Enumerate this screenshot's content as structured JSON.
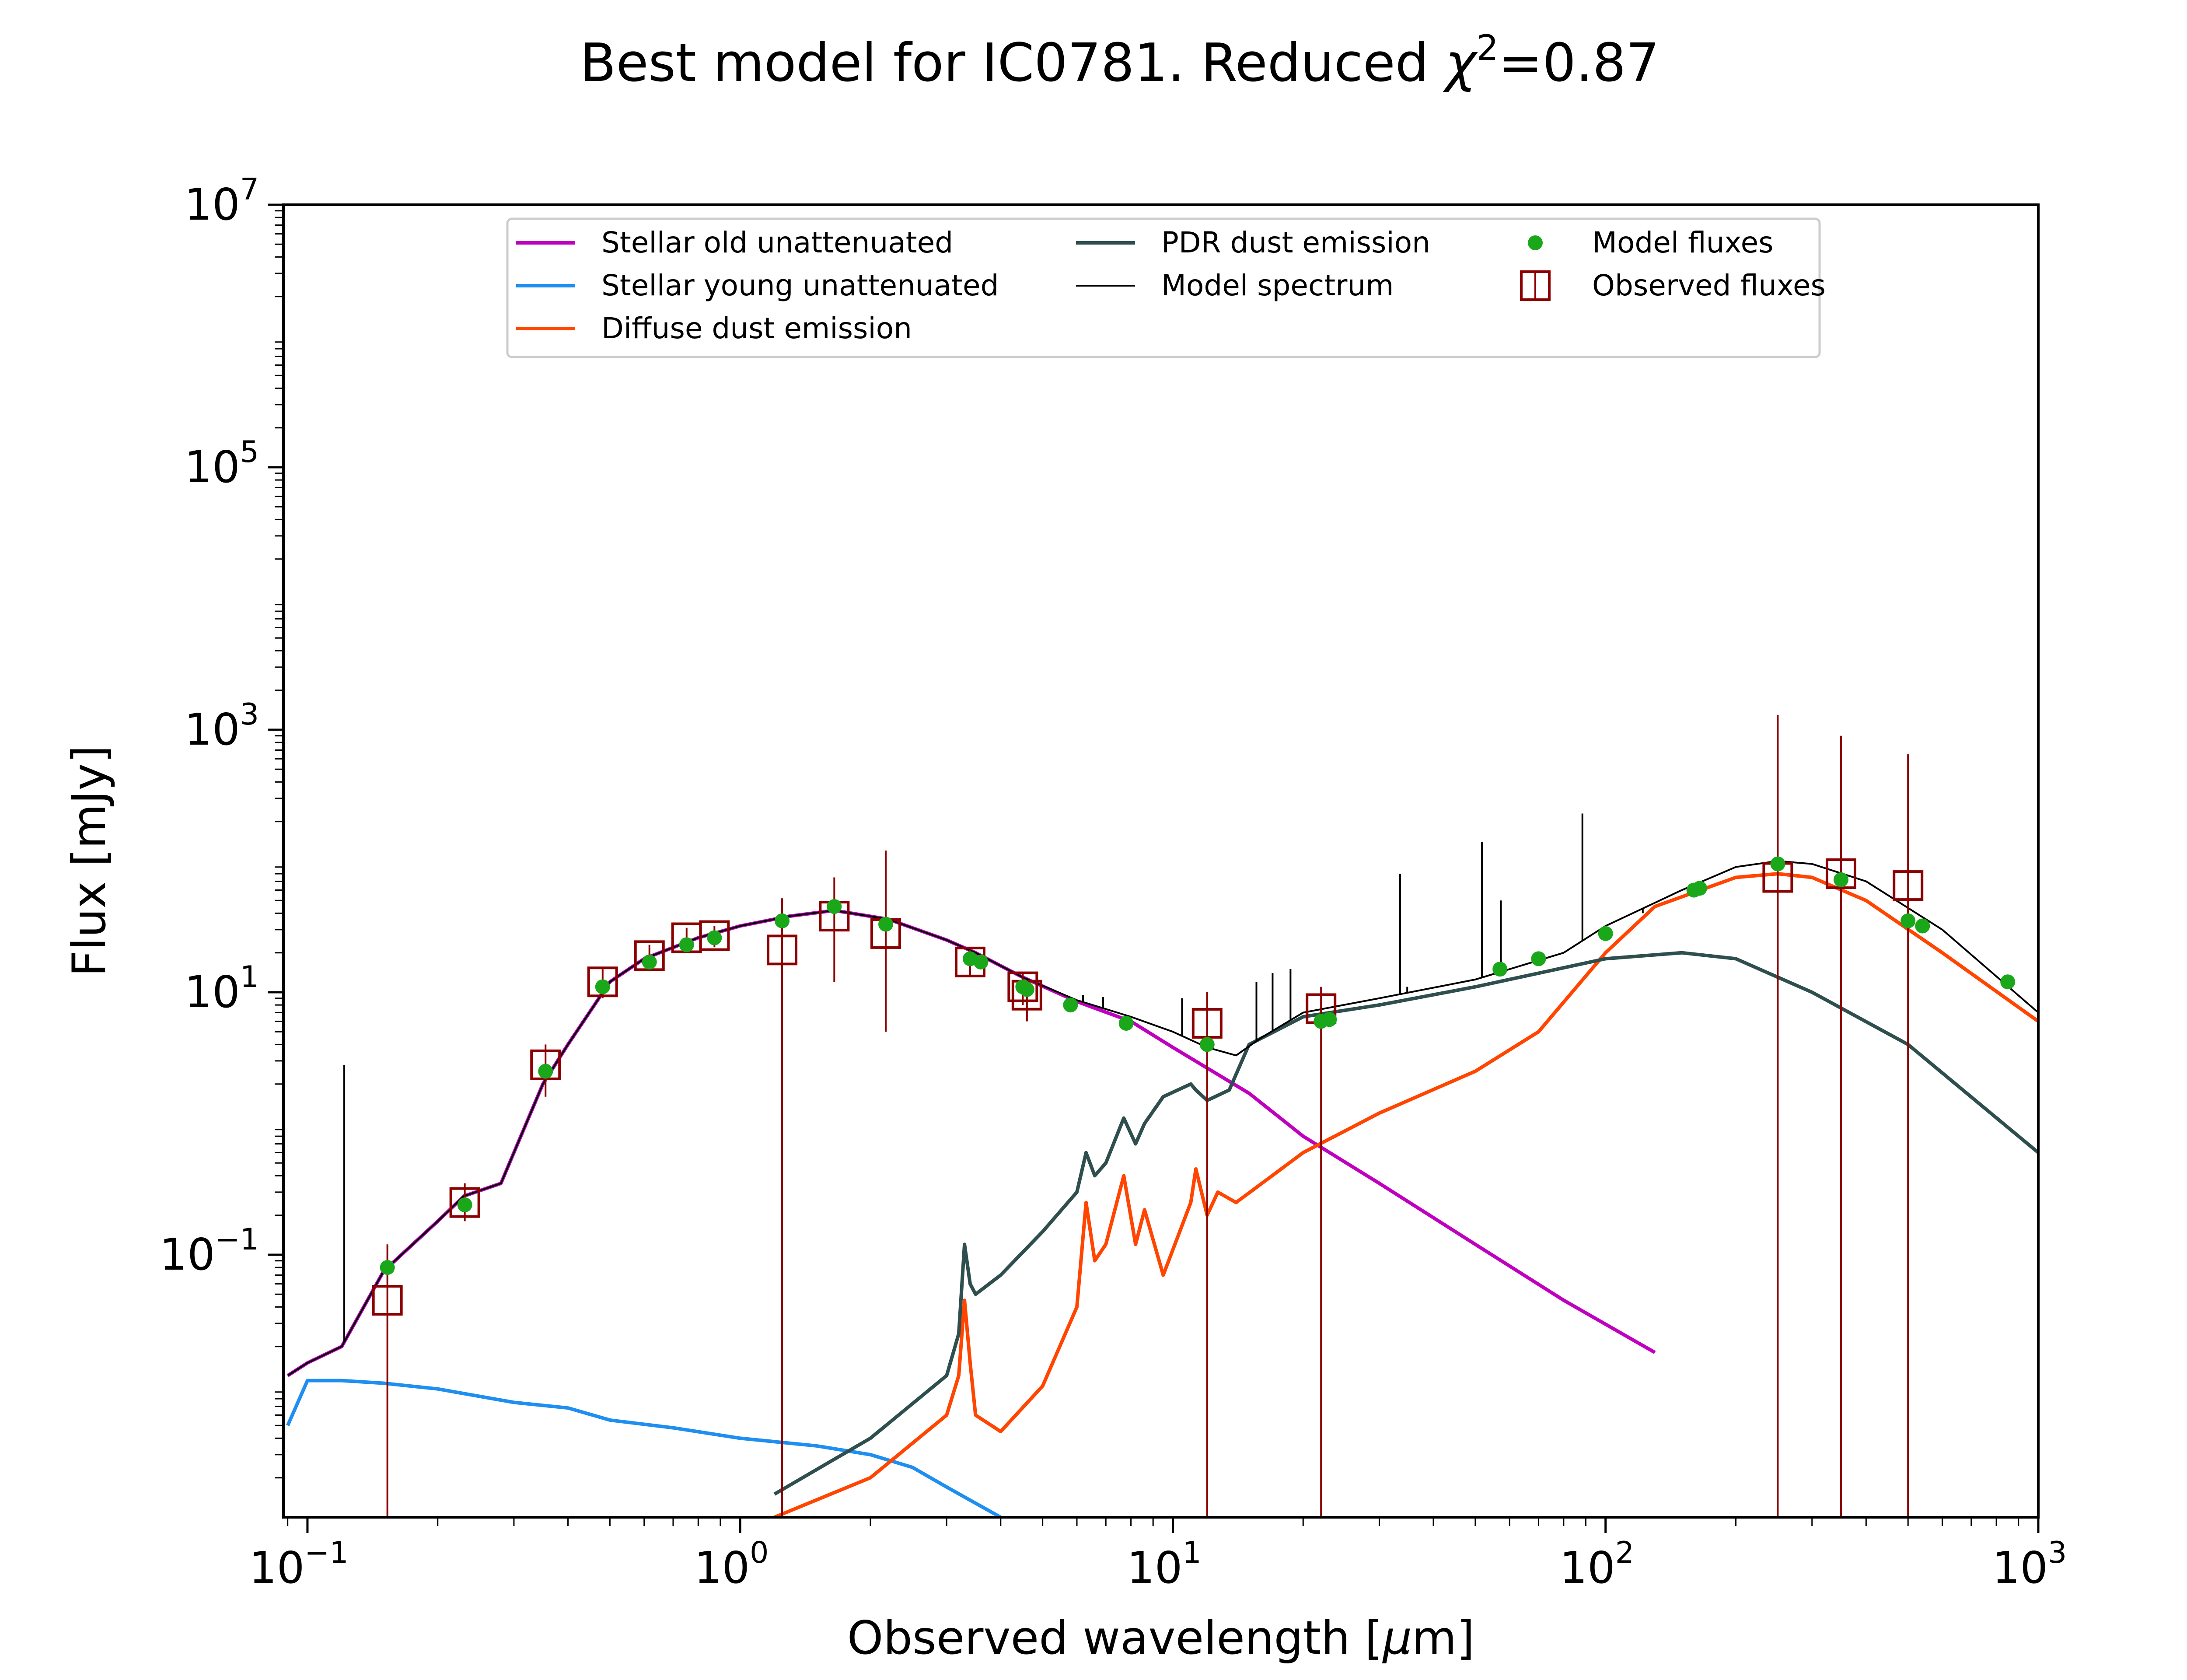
{
  "chart_data": {
    "type": "line",
    "title": "Best model for IC0781. Reduced χ²=0.87",
    "title_main": "Best model for IC0781. Reduced ",
    "title_chi": "χ",
    "title_exp": "2",
    "title_tail": "=0.87",
    "xlabel": "Observed wavelength [μm]",
    "xlabel_main": "Observed wavelength [",
    "xlabel_mu": "μ",
    "xlabel_tail": "m]",
    "ylabel": "Flux [mJy]",
    "x_scale": "log",
    "y_scale": "log",
    "xlim": [
      0.088,
      1000
    ],
    "ylim": [
      0.001,
      10000000
    ],
    "legend_position": "top",
    "x_ticks": [
      {
        "value": 0.1,
        "base": "10",
        "exp": "−1"
      },
      {
        "value": 1,
        "base": "10",
        "exp": "0"
      },
      {
        "value": 10,
        "base": "10",
        "exp": "1"
      },
      {
        "value": 100,
        "base": "10",
        "exp": "2"
      },
      {
        "value": 1000,
        "base": "10",
        "exp": "3"
      }
    ],
    "y_ticks": [
      {
        "value": 0.1,
        "base": "10",
        "exp": "−1"
      },
      {
        "value": 10,
        "base": "10",
        "exp": "1"
      },
      {
        "value": 1000,
        "base": "10",
        "exp": "3"
      },
      {
        "value": 100000,
        "base": "10",
        "exp": "5"
      },
      {
        "value": 10000000,
        "base": "10",
        "exp": "7"
      }
    ],
    "series": [
      {
        "name": "Stellar old unattenuated",
        "color": "#bf00bf",
        "kind": "line",
        "x": [
          0.09,
          0.1,
          0.12,
          0.15,
          0.2,
          0.23,
          0.28,
          0.3,
          0.35,
          0.4,
          0.5,
          0.6,
          0.8,
          1.0,
          1.3,
          1.65,
          2.2,
          3.0,
          3.5,
          4.5,
          6.0,
          8.0,
          10.0,
          15.0,
          20.0,
          30.0,
          50.0,
          80.0,
          130.0
        ],
        "y": [
          0.012,
          0.015,
          0.02,
          0.075,
          0.18,
          0.28,
          0.35,
          0.6,
          2.0,
          4.0,
          12.0,
          18.0,
          26.0,
          32.0,
          38.0,
          42.0,
          36.0,
          25.0,
          20.0,
          13.0,
          8.5,
          6.0,
          3.8,
          1.7,
          0.8,
          0.35,
          0.12,
          0.045,
          0.018
        ]
      },
      {
        "name": "Stellar young unattenuated",
        "color": "#1f8ef1",
        "kind": "line",
        "x": [
          0.09,
          0.1,
          0.12,
          0.15,
          0.2,
          0.3,
          0.4,
          0.5,
          0.7,
          1.0,
          1.5,
          2.0,
          2.5,
          3.0,
          4.0
        ],
        "y": [
          0.005,
          0.011,
          0.011,
          0.0105,
          0.0095,
          0.0075,
          0.0068,
          0.0055,
          0.0048,
          0.004,
          0.0035,
          0.003,
          0.0024,
          0.0017,
          0.001
        ]
      },
      {
        "name": "Diffuse dust emission",
        "color": "#ff4500",
        "kind": "line",
        "x": [
          1.2,
          2.0,
          3.0,
          3.2,
          3.3,
          3.4,
          3.5,
          4.0,
          5.0,
          6.0,
          6.3,
          6.6,
          7.0,
          7.7,
          8.2,
          8.6,
          9.5,
          11.0,
          11.3,
          12.0,
          12.7,
          14.0,
          20.0,
          30.0,
          50.0,
          70.0,
          100.0,
          130.0,
          200.0,
          250.0,
          300.0,
          400.0,
          600.0,
          1000.0
        ],
        "y": [
          0.001,
          0.002,
          0.006,
          0.012,
          0.045,
          0.015,
          0.006,
          0.0045,
          0.01,
          0.04,
          0.25,
          0.09,
          0.12,
          0.4,
          0.12,
          0.22,
          0.07,
          0.25,
          0.45,
          0.2,
          0.3,
          0.25,
          0.6,
          1.2,
          2.5,
          5.0,
          20.0,
          45.0,
          75.0,
          80.0,
          75.0,
          50.0,
          20.0,
          6.0
        ]
      },
      {
        "name": "PDR dust emission",
        "color": "#2f4f4f",
        "kind": "line",
        "x": [
          1.2,
          2.0,
          3.0,
          3.2,
          3.3,
          3.4,
          3.5,
          4.0,
          5.0,
          6.0,
          6.3,
          6.6,
          7.0,
          7.7,
          8.2,
          8.6,
          9.5,
          11.0,
          11.3,
          12.0,
          13.5,
          15.0,
          20.0,
          30.0,
          50.0,
          100.0,
          150.0,
          200.0,
          300.0,
          500.0,
          1000.0
        ],
        "y": [
          0.0015,
          0.004,
          0.012,
          0.025,
          0.12,
          0.06,
          0.05,
          0.07,
          0.15,
          0.3,
          0.6,
          0.4,
          0.5,
          1.1,
          0.7,
          1.0,
          1.6,
          2.0,
          1.8,
          1.5,
          1.8,
          4.0,
          6.5,
          8.0,
          11.0,
          18.0,
          20.0,
          18.0,
          10.0,
          4.0,
          0.6
        ]
      },
      {
        "name": "Model spectrum",
        "color": "#000000",
        "kind": "line",
        "thin": true,
        "x": [
          0.09,
          0.1,
          0.12,
          0.15,
          0.2,
          0.23,
          0.28,
          0.3,
          0.35,
          0.4,
          0.5,
          0.6,
          0.8,
          1.0,
          1.3,
          1.65,
          2.2,
          3.0,
          3.5,
          4.5,
          6.0,
          8.0,
          10.0,
          12.0,
          14.0,
          16.0,
          20.0,
          30.0,
          50.0,
          80.0,
          100.0,
          150.0,
          200.0,
          250.0,
          300.0,
          400.0,
          600.0,
          1000.0
        ],
        "y": [
          0.012,
          0.015,
          0.02,
          0.075,
          0.18,
          0.28,
          0.35,
          0.6,
          2.0,
          4.0,
          12.0,
          18.0,
          26.0,
          32.0,
          38.0,
          42.0,
          36.0,
          25.0,
          20.0,
          13.0,
          8.7,
          6.5,
          5.0,
          3.8,
          3.3,
          4.5,
          7.0,
          9.0,
          12.5,
          20.0,
          32.0,
          60.0,
          90.0,
          100.0,
          95.0,
          70.0,
          30.0,
          7.0
        ]
      },
      {
        "name": "Model fluxes",
        "color": "#1aa81a",
        "kind": "points",
        "x": [
          0.153,
          0.231,
          0.355,
          0.481,
          0.617,
          0.752,
          0.872,
          1.25,
          1.65,
          2.17,
          3.4,
          3.6,
          4.5,
          4.6,
          5.8,
          7.8,
          12.0,
          22.0,
          23.0,
          57.0,
          70.0,
          100.0,
          160.0,
          165.0,
          250.0,
          350.0,
          500.0,
          540.0,
          850.0
        ],
        "y": [
          0.08,
          0.24,
          2.5,
          11.0,
          17.0,
          23.0,
          26.0,
          35.0,
          45.0,
          33.0,
          18.0,
          17.0,
          11.0,
          10.5,
          8.0,
          5.8,
          4.0,
          6.0,
          6.2,
          15.0,
          18.0,
          28.0,
          60.0,
          62.0,
          95.0,
          72.0,
          35.0,
          32.0,
          12.0
        ]
      },
      {
        "name": "Observed fluxes",
        "color": "#8b0000",
        "kind": "markers",
        "x": [
          0.153,
          0.231,
          0.355,
          0.481,
          0.617,
          0.752,
          0.872,
          1.25,
          1.65,
          2.17,
          3.4,
          4.5,
          4.6,
          12.0,
          22.0,
          250.0,
          350.0,
          500.0
        ],
        "y": [
          0.045,
          0.25,
          2.8,
          12.0,
          19.0,
          26.0,
          27.0,
          21.0,
          38.0,
          28.0,
          17.0,
          11.0,
          9.5,
          5.8,
          7.5,
          75.0,
          80.0,
          65.0
        ],
        "y_low": [
          0.001,
          0.18,
          1.6,
          9.0,
          15.0,
          21.0,
          22.0,
          0.001,
          12.0,
          5.0,
          13.0,
          8.0,
          6.0,
          0.001,
          0.001,
          0.001,
          0.001,
          0.001
        ],
        "y_high": [
          0.12,
          0.35,
          4.0,
          15.0,
          23.0,
          31.0,
          32.0,
          52.0,
          75.0,
          120.0,
          21.0,
          14.0,
          12.0,
          10.0,
          11.0,
          1300.0,
          900.0,
          650.0
        ]
      }
    ],
    "emission_lines": [
      {
        "x": 0.1216,
        "y_top": 2.8
      },
      {
        "x": 6.2,
        "y_top": 9.5
      },
      {
        "x": 6.9,
        "y_top": 9.2
      },
      {
        "x": 10.5,
        "y_top": 9.0
      },
      {
        "x": 15.6,
        "y_top": 12.0
      },
      {
        "x": 17.0,
        "y_top": 14.0
      },
      {
        "x": 18.7,
        "y_top": 15.0
      },
      {
        "x": 33.5,
        "y_top": 80.0
      },
      {
        "x": 34.8,
        "y_top": 11.0
      },
      {
        "x": 51.8,
        "y_top": 140.0
      },
      {
        "x": 57.3,
        "y_top": 50.0
      },
      {
        "x": 88.4,
        "y_top": 230.0
      },
      {
        "x": 121.9,
        "y_top": 40.0
      }
    ]
  }
}
